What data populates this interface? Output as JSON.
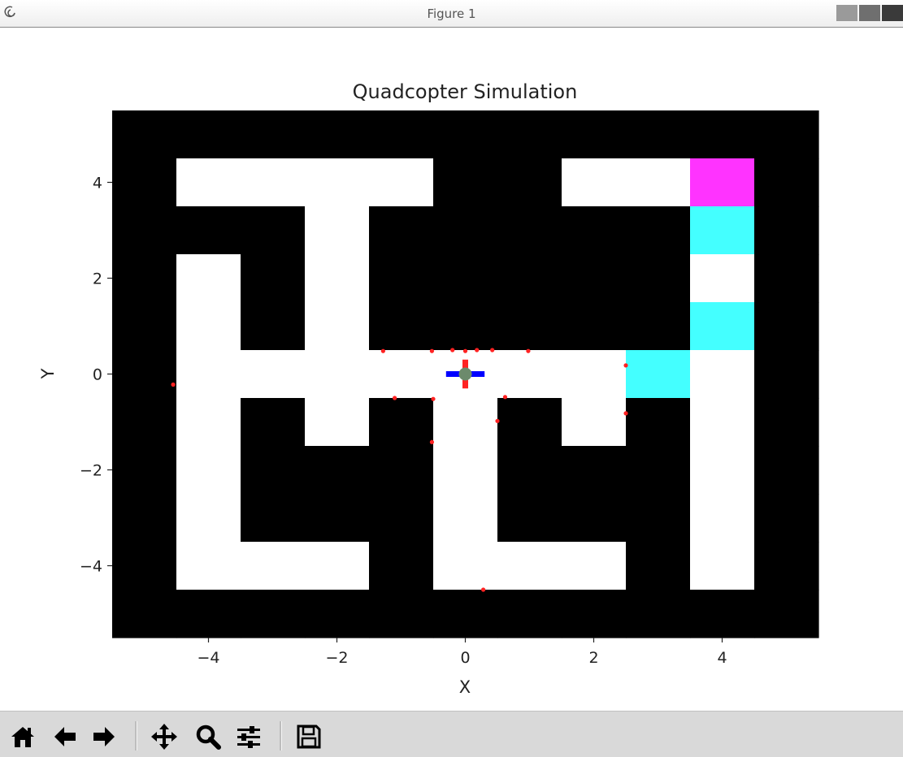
{
  "window": {
    "title": "Figure 1"
  },
  "chart_data": {
    "type": "heatmap",
    "title": "Quadcopter Simulation",
    "xlabel": "X",
    "ylabel": "Y",
    "xlim": [
      -5.5,
      5.5
    ],
    "ylim": [
      -5.5,
      5.5
    ],
    "xticks": [
      -4,
      -2,
      0,
      2,
      4
    ],
    "yticks": [
      -4,
      -2,
      0,
      2,
      4
    ],
    "tick_labels": {
      "-4": "−4",
      "-2": "−2",
      "0": "0",
      "2": "2",
      "4": "4"
    },
    "grid": false,
    "grid_origin": [
      -5.5,
      -5.5
    ],
    "cell_size": 1,
    "maze_rows_top_to_bottom": [
      "BBBBBBBBBBB",
      "BWWWWWBWWMB",
      "BBBWBBBBBCB",
      "BWBWBBBBBWB",
      "BWBWBBBBBCB",
      "BWWWWWWWCWB",
      "BWBWBWBWBWB",
      "BWBBBWBBBWB",
      "BWBBBWBBBWB",
      "BWWWBWWWBWB",
      "BBBBBBBBBBB"
    ],
    "cell_colors": {
      "B": "#000000",
      "W": "#ffffff",
      "C": "#44ffff",
      "M": "#ff33ff"
    },
    "cell_overrides": [
      {
        "row": 1,
        "col": 5,
        "value": "B"
      }
    ],
    "quadcopter": {
      "center": [
        0,
        0
      ],
      "arm_x_half": 0.3,
      "arm_y_half": 0.3,
      "arm_x_color": "#0000ff",
      "arm_y_color": "#ff2222",
      "body_color": "#6c8a6c"
    },
    "sensor_points": [
      [
        -4.55,
        -0.22
      ],
      [
        -1.28,
        0.48
      ],
      [
        -0.52,
        0.48
      ],
      [
        -0.2,
        0.5
      ],
      [
        0,
        0.48
      ],
      [
        0.18,
        0.5
      ],
      [
        0.42,
        0.5
      ],
      [
        0.98,
        0.48
      ],
      [
        2.5,
        0.18
      ],
      [
        -1.1,
        -0.5
      ],
      [
        -0.5,
        -0.52
      ],
      [
        0.62,
        -0.48
      ],
      [
        0.5,
        -0.98
      ],
      [
        2.5,
        -0.82
      ],
      [
        -0.52,
        -1.42
      ],
      [
        0.28,
        -4.5
      ]
    ],
    "sensor_color": "#ff2222"
  },
  "toolbar": {
    "buttons": [
      {
        "name": "home",
        "icon": "home-icon"
      },
      {
        "name": "back",
        "icon": "arrow-left-icon"
      },
      {
        "name": "forward",
        "icon": "arrow-right-icon"
      },
      {
        "name": "pan",
        "icon": "move-icon"
      },
      {
        "name": "zoom",
        "icon": "magnifier-icon"
      },
      {
        "name": "configure",
        "icon": "sliders-icon"
      },
      {
        "name": "save",
        "icon": "floppy-icon"
      }
    ]
  },
  "colors": {
    "toolbar_bg": "#d9d9d9",
    "axes_text": "#222222"
  }
}
